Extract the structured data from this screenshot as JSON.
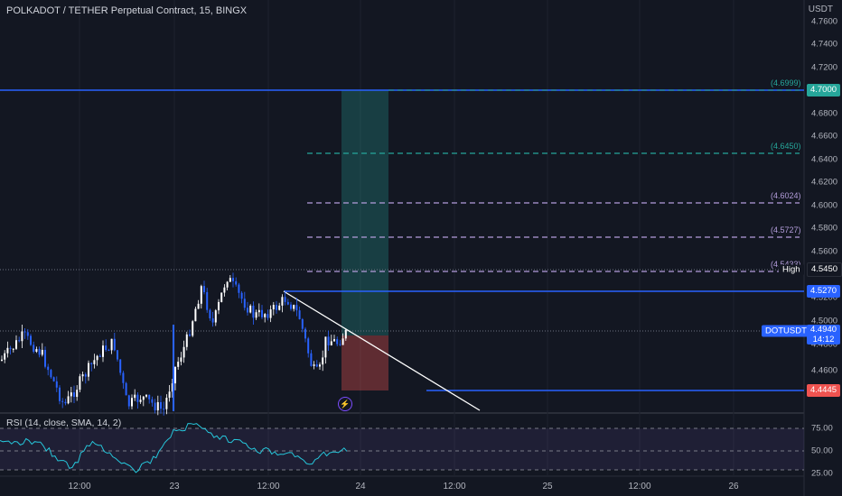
{
  "header": {
    "title": "POLKADOT / TETHER Perpetual Contract, 15, BINGX"
  },
  "price_axis": {
    "unit": "USDT",
    "ticks": [
      "4.7600",
      "4.7400",
      "4.7200",
      "4.6800",
      "4.6600",
      "4.6400",
      "4.6200",
      "4.6000",
      "4.5800",
      "4.5600",
      "4.5200",
      "4.5000",
      "4.4800",
      "4.4600"
    ]
  },
  "time_axis": {
    "ticks": [
      "12:00",
      "23",
      "12:00",
      "24",
      "12:00",
      "25",
      "12:00",
      "26"
    ]
  },
  "fib_labels": [
    "(4.6999)",
    "(4.6450)",
    "(4.6024)",
    "(4.5727)",
    "(4.5433)"
  ],
  "price_labels": {
    "target": "4.7000",
    "high_value": "4.5450",
    "high_tag": "High",
    "resistance": "4.5270",
    "stop": "4.4445",
    "current_symbol": "DOTUSDT",
    "current_price": "4.4940",
    "countdown": "14:12"
  },
  "rsi": {
    "title": "RSI (14, close, SMA, 14, 2)",
    "ticks": [
      "75.00",
      "50.00",
      "25.00"
    ]
  },
  "colors": {
    "background": "#131722",
    "up_candle": "#ffffff",
    "down_candle": "#2962ff",
    "target_zone": "#26a69a",
    "stop_zone": "#ef5350",
    "fib_purple": "#b39ddb",
    "fib_teal": "#26a69a",
    "line_blue": "#2962ff"
  },
  "icons": {
    "alert": "lightning-bolt-icon"
  }
}
